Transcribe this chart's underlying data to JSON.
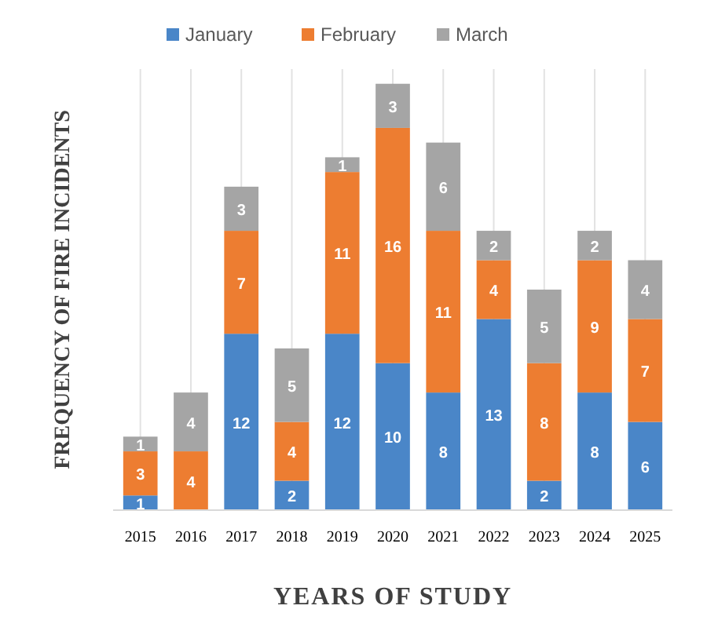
{
  "chart_data": {
    "type": "bar",
    "stacked": true,
    "xlabel": "YEARS OF STUDY",
    "ylabel": "FREQUENCY OF FIRE INCIDENTS",
    "categories": [
      "2015",
      "2016",
      "2017",
      "2018",
      "2019",
      "2020",
      "2021",
      "2022",
      "2023",
      "2024",
      "2025"
    ],
    "series": [
      {
        "name": "January",
        "color": "#4a86c8",
        "values": [
          1,
          null,
          12,
          2,
          12,
          10,
          8,
          13,
          2,
          8,
          6
        ]
      },
      {
        "name": "February",
        "color": "#ed7d31",
        "values": [
          3,
          4,
          7,
          4,
          11,
          16,
          11,
          4,
          8,
          9,
          7
        ]
      },
      {
        "name": "March",
        "color": "#a5a5a5",
        "values": [
          1,
          4,
          3,
          5,
          1,
          3,
          6,
          2,
          5,
          2,
          4
        ]
      }
    ],
    "ylim": [
      0,
      30
    ],
    "tick_labels": "x",
    "data_labels": true,
    "grid": "x",
    "legend": "top"
  }
}
